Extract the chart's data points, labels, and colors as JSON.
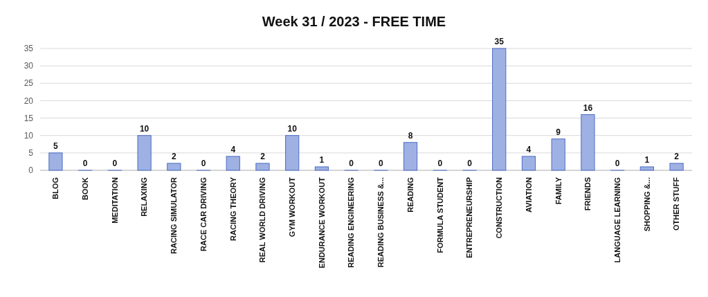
{
  "chart_data": {
    "type": "bar",
    "title": "Week 31 / 2023 - FREE TIME",
    "categories": [
      "BLOG",
      "BOOK",
      "MEDITATION",
      "RELAXING",
      "RACING SIMULATOR",
      "RACE CAR DRIVING",
      "RACING THEORY",
      "REAL WORLD DRIVING",
      "GYM WORKOUT",
      "ENDURANCE WORKOUT",
      "READING ENGINEERING",
      "READING BUSINESS &...",
      "READING",
      "FORMULA STUDENT",
      "ENTREPRENEURSHIP",
      "CONSTRUCTION",
      "AVIATION",
      "FAMILY",
      "FRIENDS",
      "LANGUAGE LEARNING",
      "SHOPPING &...",
      "OTHER STUFF"
    ],
    "values": [
      5,
      0,
      0,
      10,
      2,
      0,
      4,
      2,
      10,
      1,
      0,
      0,
      8,
      0,
      0,
      35,
      4,
      9,
      16,
      0,
      1,
      2
    ],
    "color": "#9fb1e3",
    "ylim": [
      0,
      35
    ],
    "yticks": [
      0,
      5,
      10,
      15,
      20,
      25,
      30,
      35
    ],
    "grid": "y",
    "data_labels": true
  }
}
